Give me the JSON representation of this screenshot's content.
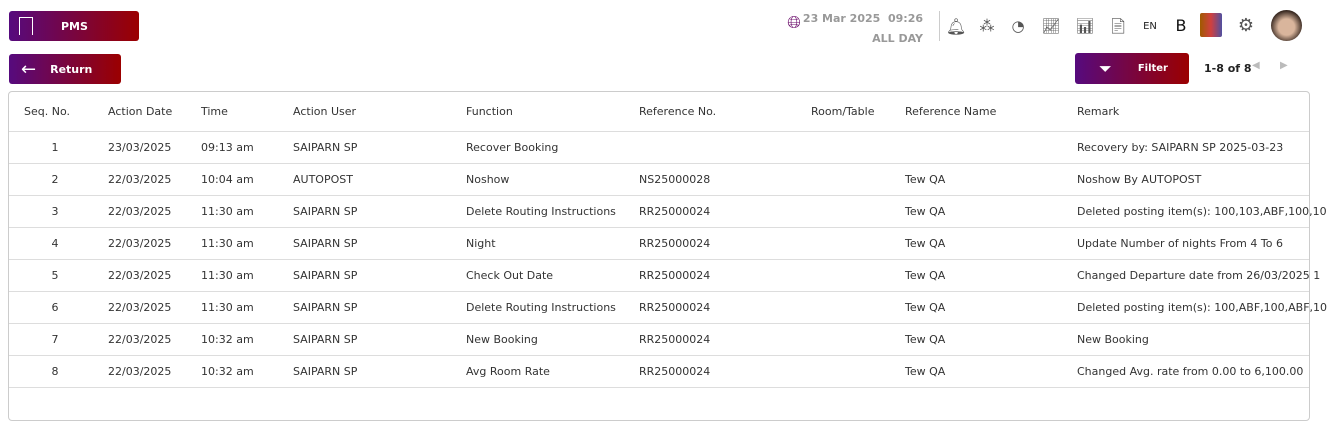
{
  "header": {
    "app_label": "PMS",
    "date": "23 Mar 2025",
    "time": "09:26",
    "period": "ALL DAY",
    "language": "EN",
    "b_label": "B",
    "icons": [
      "globe-search-icon",
      "bell-icon",
      "network-icon",
      "pie-icon",
      "line-chart-icon",
      "bar-chart-icon",
      "report-icon",
      "palette-icon",
      "gear-icon",
      "avatar"
    ]
  },
  "toolbar": {
    "return_label": "Return",
    "filter_label": "Filter",
    "pager": "1-8 of 8"
  },
  "table": {
    "columns": [
      "Seq. No.",
      "Action Date",
      "Time",
      "Action User",
      "Function",
      "Reference No.",
      "Room/Table",
      "Reference Name",
      "Remark"
    ],
    "rows": [
      [
        "1",
        "23/03/2025",
        "09:13 am",
        "SAIPARN SP",
        "Recover Booking",
        "",
        "",
        "",
        "Recovery by: SAIPARN SP 2025-03-23"
      ],
      [
        "2",
        "22/03/2025",
        "10:04 am",
        "AUTOPOST",
        "Noshow",
        "NS25000028",
        "",
        "Tew QA",
        "Noshow By AUTOPOST"
      ],
      [
        "3",
        "22/03/2025",
        "11:30 am",
        "SAIPARN SP",
        "Delete Routing Instructions",
        "RR25000024",
        "",
        "Tew QA",
        "Deleted posting item(s): 100,103,ABF,100,10"
      ],
      [
        "4",
        "22/03/2025",
        "11:30 am",
        "SAIPARN SP",
        "Night",
        "RR25000024",
        "",
        "Tew QA",
        "Update Number of nights From 4 To 6"
      ],
      [
        "5",
        "22/03/2025",
        "11:30 am",
        "SAIPARN SP",
        "Check Out Date",
        "RR25000024",
        "",
        "Tew QA",
        "Changed Departure date from 26/03/2025 1"
      ],
      [
        "6",
        "22/03/2025",
        "11:30 am",
        "SAIPARN SP",
        "Delete Routing Instructions",
        "RR25000024",
        "",
        "Tew QA",
        "Deleted posting item(s): 100,ABF,100,ABF,10"
      ],
      [
        "7",
        "22/03/2025",
        "10:32 am",
        "SAIPARN SP",
        "New Booking",
        "RR25000024",
        "",
        "Tew QA",
        "New Booking"
      ],
      [
        "8",
        "22/03/2025",
        "10:32 am",
        "SAIPARN SP",
        "Avg Room Rate",
        "RR25000024",
        "",
        "Tew QA",
        "Changed Avg. rate from 0.00 to 6,100.00"
      ]
    ]
  }
}
